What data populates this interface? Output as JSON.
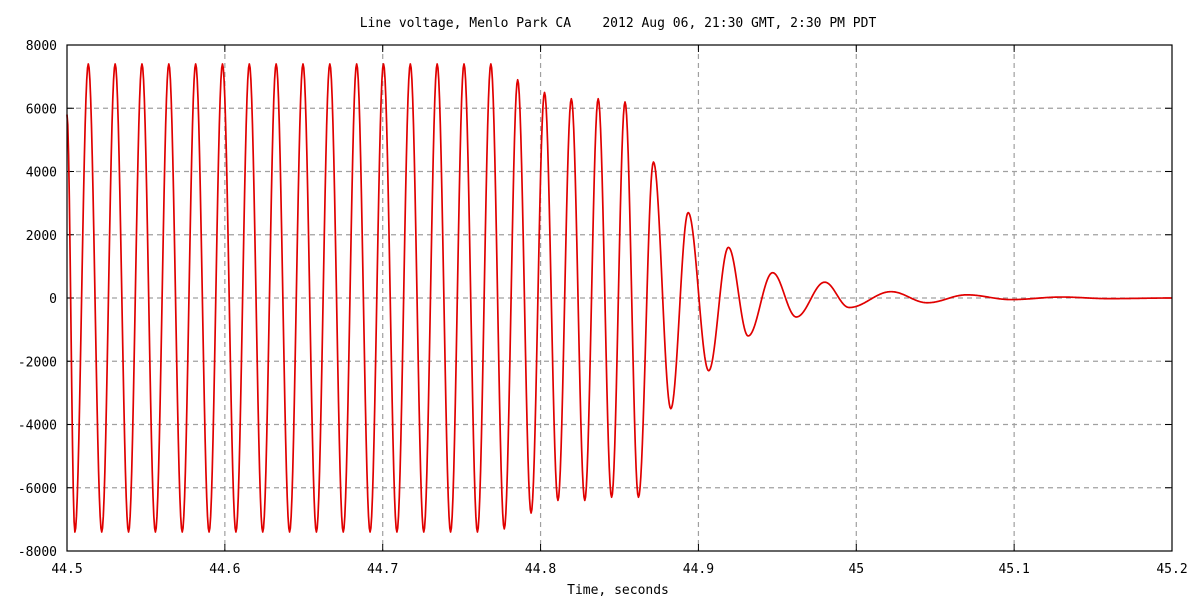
{
  "chart_data": {
    "type": "line",
    "title": "Line voltage, Menlo Park CA    2012 Aug 06, 21:30 GMT, 2:30 PM PDT",
    "xlabel": "Time, seconds",
    "ylabel": "",
    "xlim": [
      44.5,
      45.2
    ],
    "ylim": [
      -8000,
      8000
    ],
    "x_ticks": [
      44.5,
      44.6,
      44.7,
      44.8,
      44.9,
      45,
      45.1,
      45.2
    ],
    "x_tick_labels": [
      "44.5",
      "44.6",
      "44.7",
      "44.8",
      "44.9",
      "45",
      "45.1",
      "45.2"
    ],
    "y_ticks": [
      -8000,
      -6000,
      -4000,
      -2000,
      0,
      2000,
      4000,
      6000,
      8000
    ],
    "y_tick_labels": [
      "-8000",
      "-6000",
      "-4000",
      "-2000",
      "0",
      "2000",
      "4000",
      "6000",
      "8000"
    ],
    "grid": true,
    "legend": "none",
    "series": [
      {
        "color": "#e00000",
        "extrema": [
          [
            44.5,
            5800
          ],
          [
            44.505,
            -7400
          ],
          [
            44.5135,
            7400
          ],
          [
            44.522,
            -7400
          ],
          [
            44.5305,
            7400
          ],
          [
            44.539,
            -7400
          ],
          [
            44.5475,
            7400
          ],
          [
            44.556,
            -7400
          ],
          [
            44.5645,
            7400
          ],
          [
            44.573,
            -7400
          ],
          [
            44.5815,
            7400
          ],
          [
            44.59,
            -7400
          ],
          [
            44.5985,
            7400
          ],
          [
            44.607,
            -7400
          ],
          [
            44.6155,
            7400
          ],
          [
            44.624,
            -7400
          ],
          [
            44.6325,
            7400
          ],
          [
            44.641,
            -7400
          ],
          [
            44.6495,
            7400
          ],
          [
            44.658,
            -7400
          ],
          [
            44.6665,
            7400
          ],
          [
            44.675,
            -7400
          ],
          [
            44.6835,
            7400
          ],
          [
            44.692,
            -7400
          ],
          [
            44.7005,
            7400
          ],
          [
            44.709,
            -7400
          ],
          [
            44.7175,
            7400
          ],
          [
            44.726,
            -7400
          ],
          [
            44.7345,
            7400
          ],
          [
            44.743,
            -7400
          ],
          [
            44.7515,
            7400
          ],
          [
            44.76,
            -7400
          ],
          [
            44.7685,
            7400
          ],
          [
            44.777,
            -7300
          ],
          [
            44.7855,
            6900
          ],
          [
            44.794,
            -6800
          ],
          [
            44.8025,
            6500
          ],
          [
            44.811,
            -6400
          ],
          [
            44.8195,
            6300
          ],
          [
            44.828,
            -6400
          ],
          [
            44.8365,
            6300
          ],
          [
            44.845,
            -6300
          ],
          [
            44.8535,
            6200
          ],
          [
            44.862,
            -6300
          ],
          [
            44.8715,
            4300
          ],
          [
            44.8825,
            -3500
          ],
          [
            44.8935,
            2700
          ],
          [
            44.9065,
            -2300
          ],
          [
            44.919,
            1600
          ],
          [
            44.9315,
            -1200
          ],
          [
            44.947,
            800
          ],
          [
            44.962,
            -600
          ],
          [
            44.98,
            500
          ],
          [
            44.9955,
            -300
          ],
          [
            45.022,
            200
          ],
          [
            45.045,
            -150
          ],
          [
            45.07,
            100
          ],
          [
            45.098,
            -50
          ],
          [
            45.13,
            30
          ],
          [
            45.16,
            -20
          ],
          [
            45.2,
            0
          ]
        ]
      }
    ]
  }
}
